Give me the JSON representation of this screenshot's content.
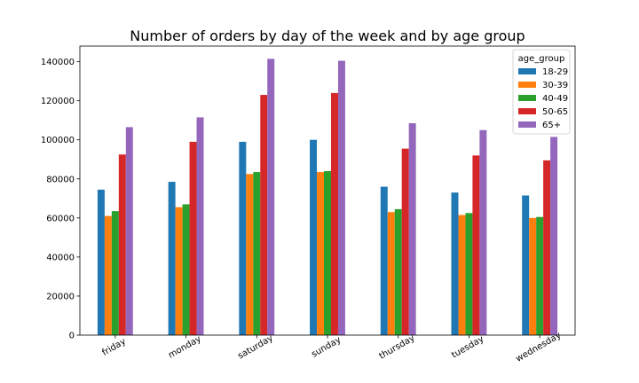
{
  "chart_data": {
    "type": "bar",
    "title": "Number of orders by day of the week and by age group",
    "xlabel": "",
    "ylabel": "",
    "categories": [
      "friday",
      "monday",
      "saturday",
      "sunday",
      "thursday",
      "tuesday",
      "wednesday"
    ],
    "ylim": [
      0,
      148000
    ],
    "yticks": [
      0,
      20000,
      40000,
      60000,
      80000,
      100000,
      120000,
      140000
    ],
    "ytick_labels": [
      "0",
      "20000",
      "40000",
      "60000",
      "80000",
      "100000",
      "120000",
      "140000"
    ],
    "grid": false,
    "legend": {
      "title": "age_group",
      "placement": "top-right"
    },
    "series": [
      {
        "name": "18-29",
        "color": "#1f77b4",
        "values": [
          74500,
          78500,
          99000,
          100000,
          76000,
          73000,
          71500
        ]
      },
      {
        "name": "30-39",
        "color": "#ff7f0e",
        "values": [
          61000,
          65500,
          82500,
          83500,
          63000,
          61500,
          60000
        ]
      },
      {
        "name": "40-49",
        "color": "#2ca02c",
        "values": [
          63500,
          67000,
          83500,
          84000,
          64500,
          62500,
          60500
        ]
      },
      {
        "name": "50-65",
        "color": "#d62728",
        "values": [
          92500,
          99000,
          123000,
          124000,
          95500,
          92000,
          89500
        ]
      },
      {
        "name": "65+",
        "color": "#9467bd",
        "values": [
          106500,
          111500,
          141500,
          140500,
          108500,
          105000,
          101500
        ]
      }
    ]
  }
}
